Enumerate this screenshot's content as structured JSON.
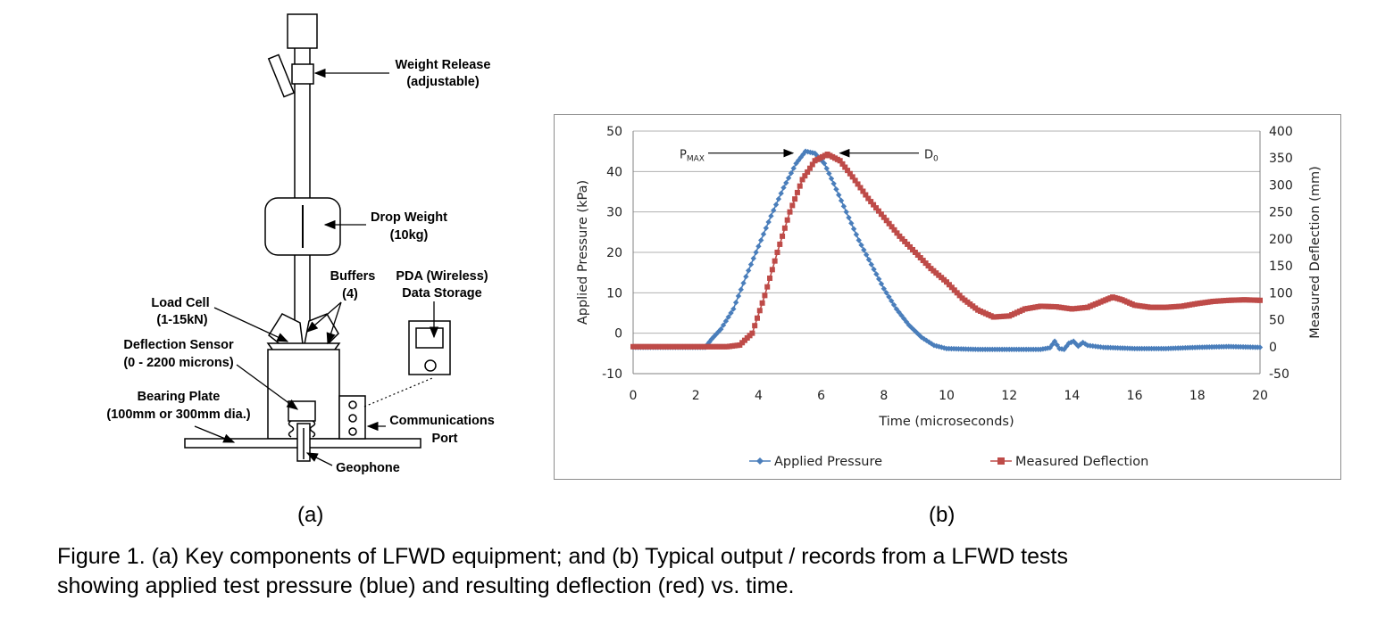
{
  "diagram": {
    "labels": {
      "weight_release_1": "Weight Release",
      "weight_release_2": "(adjustable)",
      "drop_weight_1": "Drop Weight",
      "drop_weight_2": "(10kg)",
      "buffers_1": "Buffers",
      "buffers_2": "(4)",
      "pda_1": "PDA (Wireless)",
      "pda_2": "Data Storage",
      "load_cell_1": "Load Cell",
      "load_cell_2": "(1-15kN)",
      "deflection_sensor_1": "Deflection Sensor",
      "deflection_sensor_2": "(0 - 2200 microns)",
      "bearing_plate_1": "Bearing Plate",
      "bearing_plate_2": "(100mm or 300mm dia.)",
      "comm_port_1": "Communications",
      "comm_port_2": "Port",
      "geophone": "Geophone"
    }
  },
  "panel_a_label": "(a)",
  "panel_b_label": "(b)",
  "caption": {
    "line1": "Figure 1. (a) Key components of LFWD equipment; and (b) Typical output / records from a LFWD tests",
    "line2": "showing applied test pressure (blue) and resulting deflection (red) vs. time."
  },
  "chart_data": {
    "type": "line",
    "title": "",
    "xlabel": "Time (microseconds)",
    "ylabel": "Applied Pressure (kPa)",
    "y2label": "Measured Deflection (mm)",
    "xlim": [
      0,
      20
    ],
    "ylim": [
      -10,
      50
    ],
    "y2lim": [
      -50,
      400
    ],
    "x_ticks": [
      0,
      2,
      4,
      6,
      8,
      10,
      12,
      14,
      16,
      18,
      20
    ],
    "y_ticks": [
      -10,
      0,
      10,
      20,
      30,
      40,
      50
    ],
    "y2_ticks": [
      -50,
      0,
      50,
      100,
      150,
      200,
      250,
      300,
      350,
      400
    ],
    "grid": "horizontal",
    "legend_position": "bottom",
    "colors": {
      "pressure": "#4a7ebb",
      "deflection": "#be4b48"
    },
    "series": [
      {
        "name": "Applied Pressure",
        "axis": "left",
        "marker": "diamond",
        "points": [
          [
            0,
            -3.5
          ],
          [
            2.3,
            -3.5
          ],
          [
            2.5,
            -1.5
          ],
          [
            2.8,
            1
          ],
          [
            3.2,
            6
          ],
          [
            3.6,
            14
          ],
          [
            4,
            21.5
          ],
          [
            4.4,
            29
          ],
          [
            4.8,
            36
          ],
          [
            5.2,
            42
          ],
          [
            5.5,
            45
          ],
          [
            5.8,
            44.5
          ],
          [
            6.1,
            42
          ],
          [
            6.4,
            37
          ],
          [
            6.8,
            30
          ],
          [
            7.2,
            23
          ],
          [
            7.6,
            17
          ],
          [
            8,
            11
          ],
          [
            8.4,
            6
          ],
          [
            8.8,
            2
          ],
          [
            9.2,
            -1
          ],
          [
            9.6,
            -3
          ],
          [
            10,
            -3.8
          ],
          [
            11,
            -4
          ],
          [
            12,
            -4
          ],
          [
            13,
            -4
          ],
          [
            13.3,
            -3.6
          ],
          [
            13.45,
            -2
          ],
          [
            13.6,
            -3.8
          ],
          [
            13.75,
            -4
          ],
          [
            13.9,
            -2.5
          ],
          [
            14.05,
            -2
          ],
          [
            14.2,
            -3.2
          ],
          [
            14.35,
            -2.3
          ],
          [
            14.5,
            -3
          ],
          [
            15,
            -3.5
          ],
          [
            16,
            -3.8
          ],
          [
            17,
            -3.8
          ],
          [
            18,
            -3.5
          ],
          [
            19,
            -3.3
          ],
          [
            20,
            -3.5
          ]
        ]
      },
      {
        "name": "Measured Deflection",
        "axis": "right",
        "marker": "square",
        "points": [
          [
            0,
            0
          ],
          [
            3,
            0
          ],
          [
            3.4,
            3
          ],
          [
            3.8,
            25
          ],
          [
            4.2,
            95
          ],
          [
            4.6,
            175
          ],
          [
            5,
            250
          ],
          [
            5.4,
            310
          ],
          [
            5.8,
            345
          ],
          [
            6.2,
            357
          ],
          [
            6.6,
            345
          ],
          [
            7,
            315
          ],
          [
            7.5,
            275
          ],
          [
            8,
            240
          ],
          [
            8.5,
            205
          ],
          [
            9,
            175
          ],
          [
            9.5,
            145
          ],
          [
            10,
            120
          ],
          [
            10.5,
            90
          ],
          [
            11,
            68
          ],
          [
            11.5,
            55
          ],
          [
            12,
            57
          ],
          [
            12.5,
            70
          ],
          [
            13,
            75
          ],
          [
            13.5,
            74
          ],
          [
            14,
            70
          ],
          [
            14.5,
            73
          ],
          [
            15,
            85
          ],
          [
            15.3,
            92
          ],
          [
            15.6,
            87
          ],
          [
            16,
            77
          ],
          [
            16.5,
            73
          ],
          [
            17,
            73
          ],
          [
            17.5,
            75
          ],
          [
            18,
            80
          ],
          [
            18.5,
            84
          ],
          [
            19,
            86
          ],
          [
            19.5,
            87
          ],
          [
            20,
            86
          ]
        ]
      }
    ],
    "annotations": [
      {
        "text": "P",
        "sub": "MAX",
        "points_to": "Applied Pressure peak"
      },
      {
        "text": "D",
        "sub": "0",
        "points_to": "Measured Deflection peak"
      }
    ]
  }
}
